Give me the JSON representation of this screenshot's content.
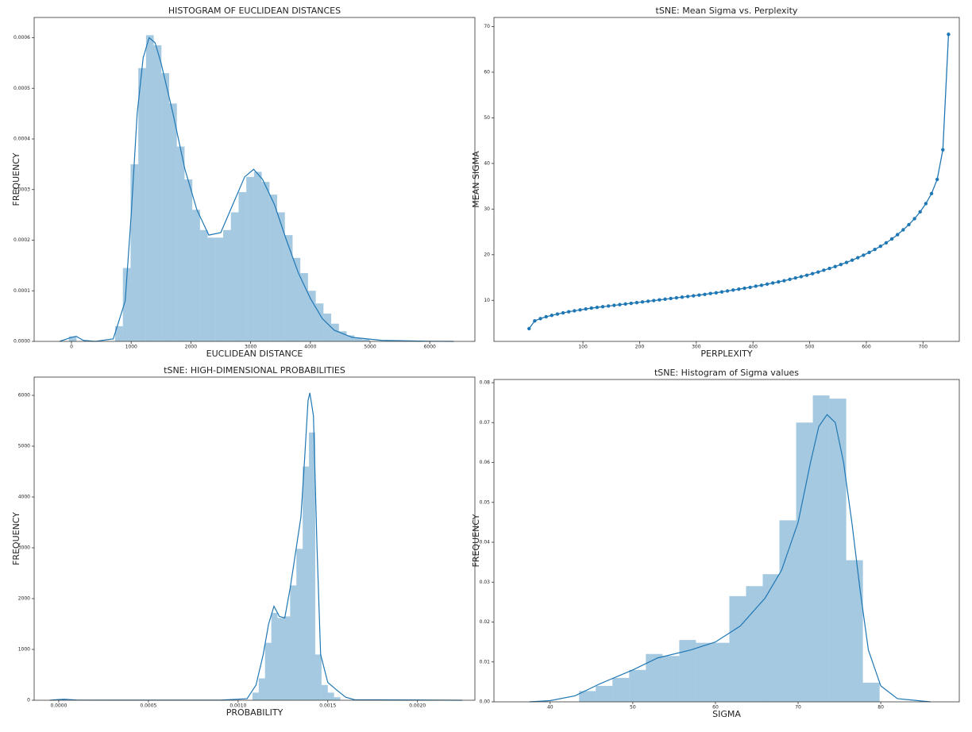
{
  "chart_data": [
    {
      "type": "histogram",
      "title": "HISTOGRAM OF EUCLIDEAN DISTANCES",
      "xlabel": "EUCLIDEAN DISTANCE",
      "ylabel": "FREQUENCY",
      "color": "#1f77b4",
      "bins": [
        -44,
        85.2,
        214.4,
        343.6,
        472.8,
        602,
        731.2,
        860.4,
        989.6,
        1118.8,
        1248,
        1377.2,
        1506.4,
        1635.6,
        1764.8,
        1894,
        2023.2,
        2152.4,
        2281.6,
        2410.8,
        2540,
        2669.2,
        2798.4,
        2927.6,
        3056.8,
        3186,
        3315.2,
        3444.4,
        3573.6,
        3702.8,
        3832,
        3961.2,
        4090.4,
        4219.6,
        4348.8,
        4478,
        4607.2,
        4736.4,
        4865.6,
        4994.8
      ],
      "values": [
        1e-05,
        0,
        0,
        0,
        0,
        0,
        3e-05,
        0.000145,
        0.00035,
        0.00054,
        0.000605,
        0.000585,
        0.00053,
        0.00047,
        0.000385,
        0.00032,
        0.00026,
        0.00022,
        0.000205,
        0.000205,
        0.00022,
        0.000255,
        0.000295,
        0.000325,
        0.000335,
        0.000315,
        0.00029,
        0.000255,
        0.00021,
        0.000165,
        0.000135,
        0.0001,
        7.5e-05,
        5.5e-05,
        3.5e-05,
        2e-05,
        1.2e-05,
        7e-06,
        4e-06
      ],
      "kde_x": [
        -200,
        0,
        80,
        200,
        400,
        700,
        900,
        1000,
        1100,
        1200,
        1300,
        1400,
        1500,
        1700,
        1900,
        2100,
        2300,
        2500,
        2700,
        2900,
        3050,
        3200,
        3400,
        3600,
        3800,
        4000,
        4200,
        4400,
        4700,
        5200,
        6000,
        6400
      ],
      "kde_y": [
        0,
        8e-06,
        1e-05,
        2e-06,
        0,
        5e-06,
        8e-05,
        0.00025,
        0.00045,
        0.00056,
        0.0006,
        0.00059,
        0.00055,
        0.00045,
        0.00034,
        0.00026,
        0.00021,
        0.000215,
        0.00027,
        0.000325,
        0.00034,
        0.00032,
        0.00027,
        0.0002,
        0.000135,
        8.5e-05,
        4.5e-05,
        2.2e-05,
        8e-06,
        2e-06,
        3e-07,
        0
      ],
      "xlim": [
        -625,
        6755
      ],
      "xticks": [
        0,
        1000,
        2000,
        3000,
        4000,
        5000,
        6000
      ],
      "ylim": [
        0,
        0.00064
      ],
      "yticks": [
        {
          "value": 0,
          "label": "0.0000"
        },
        {
          "value": 0.0001,
          "label": "0.0001"
        },
        {
          "value": 0.0002,
          "label": "0.0002"
        },
        {
          "value": 0.0003,
          "label": "0.0003"
        },
        {
          "value": 0.0004,
          "label": "0.0004"
        },
        {
          "value": 0.0005,
          "label": "0.0005"
        },
        {
          "value": 0.0006,
          "label": "0.0006"
        }
      ]
    },
    {
      "type": "line",
      "title": "tSNE: Mean Sigma vs. Perplexity",
      "xlabel": "PERPLEXITY",
      "ylabel": "MEAN SIGMA",
      "color": "#1f77b4",
      "x": [
        5,
        15,
        25,
        35,
        45,
        55,
        65,
        75,
        85,
        95,
        105,
        115,
        125,
        135,
        145,
        155,
        165,
        175,
        185,
        195,
        205,
        215,
        225,
        235,
        245,
        255,
        265,
        275,
        285,
        295,
        305,
        315,
        325,
        335,
        345,
        355,
        365,
        375,
        385,
        395,
        405,
        415,
        425,
        435,
        445,
        455,
        465,
        475,
        485,
        495,
        505,
        515,
        525,
        535,
        545,
        555,
        565,
        575,
        585,
        595,
        605,
        615,
        625,
        635,
        645,
        655,
        665,
        675,
        685,
        695,
        705,
        715,
        725,
        735,
        745
      ],
      "values": [
        3.8,
        5.5,
        6.0,
        6.4,
        6.7,
        7.0,
        7.25,
        7.5,
        7.7,
        7.9,
        8.1,
        8.3,
        8.45,
        8.6,
        8.75,
        8.9,
        9.05,
        9.2,
        9.35,
        9.5,
        9.65,
        9.8,
        9.95,
        10.1,
        10.25,
        10.4,
        10.55,
        10.7,
        10.85,
        11.0,
        11.15,
        11.3,
        11.5,
        11.65,
        11.85,
        12.05,
        12.25,
        12.45,
        12.65,
        12.85,
        13.1,
        13.3,
        13.55,
        13.8,
        14.05,
        14.3,
        14.6,
        14.9,
        15.2,
        15.5,
        15.85,
        16.2,
        16.6,
        17.0,
        17.4,
        17.85,
        18.3,
        18.8,
        19.35,
        19.9,
        20.5,
        21.15,
        21.85,
        22.6,
        23.45,
        24.4,
        25.45,
        26.6,
        27.9,
        29.4,
        31.2,
        33.4,
        36.5,
        43.0,
        68.3
      ],
      "xlim": [
        -57,
        764
      ],
      "xticks": [
        100,
        200,
        300,
        400,
        500,
        600,
        700
      ],
      "ylim": [
        1,
        72
      ],
      "yticks": [
        10,
        20,
        30,
        40,
        50,
        60,
        70
      ]
    },
    {
      "type": "histogram",
      "title": "tSNE: HIGH-DIMENSIONAL PROBABILITIES",
      "xlabel": "PROBABILITY",
      "ylabel": "FREQUENCY",
      "color": "#1f77b4",
      "bins": [
        -5e-06,
        3e-05,
        6.5e-05,
        0.0001,
        0.000135,
        0.00017,
        0.000205,
        0.00024,
        0.000275,
        0.00031,
        0.000345,
        0.00038,
        0.000415,
        0.00045,
        0.000485,
        0.00052,
        0.000555,
        0.00059,
        0.000625,
        0.00066,
        0.000695,
        0.00073,
        0.000765,
        0.0008,
        0.000835,
        0.00087,
        0.000905,
        0.00094,
        0.000975,
        0.00101,
        0.001045,
        0.00108,
        0.001115,
        0.00115,
        0.001185,
        0.00122,
        0.001255,
        0.00129,
        0.001325,
        0.00136,
        0.001395,
        0.00143,
        0.001465,
        0.0015,
        0.001535,
        0.00157
      ],
      "values": [
        20,
        0,
        0,
        0,
        0,
        0,
        0,
        0,
        0,
        0,
        0,
        0,
        0,
        0,
        0,
        0,
        0,
        0,
        0,
        0,
        0,
        0,
        0,
        0,
        0,
        0,
        0,
        0,
        0,
        0,
        0,
        150,
        430,
        1130,
        1720,
        1620,
        1650,
        2260,
        2980,
        4600,
        5270,
        900,
        300,
        150,
        60
      ],
      "kde_x": [
        -5e-05,
        0,
        3e-05,
        0.0001,
        0.0003,
        0.0009,
        0.00105,
        0.0011,
        0.00114,
        0.00117,
        0.0012,
        0.00123,
        0.00126,
        0.00129,
        0.00132,
        0.00135,
        0.00137,
        0.00139,
        0.0014,
        0.00142,
        0.00144,
        0.00146,
        0.0015,
        0.00155,
        0.0016,
        0.00165,
        0.00225
      ],
      "kde_y": [
        0,
        15,
        20,
        5,
        2,
        2,
        30,
        300,
        900,
        1500,
        1850,
        1650,
        1620,
        2200,
        2900,
        3600,
        4700,
        5900,
        6050,
        5600,
        3000,
        900,
        350,
        200,
        60,
        10,
        0
      ],
      "xlim": [
        -0.000137,
        0.00232
      ],
      "xticks": [
        {
          "value": 0,
          "label": "0.0000"
        },
        {
          "value": 0.0005,
          "label": "0.0005"
        },
        {
          "value": 0.001,
          "label": "0.0010"
        },
        {
          "value": 0.0015,
          "label": "0.0015"
        },
        {
          "value": 0.002,
          "label": "0.0020"
        }
      ],
      "ylim": [
        0,
        6360
      ],
      "yticks": [
        0,
        1000,
        2000,
        3000,
        4000,
        5000,
        6000
      ]
    },
    {
      "type": "histogram",
      "title": "tSNE: Histogram of Sigma values",
      "xlabel": "SIGMA",
      "ylabel": "FREQUENCY",
      "color": "#1f77b4",
      "bins": [
        43.5,
        45.52,
        47.54,
        49.56,
        51.58,
        53.6,
        55.62,
        57.64,
        59.66,
        61.68,
        63.7,
        65.72,
        67.74,
        69.76,
        71.78,
        73.8,
        75.82,
        77.84,
        79.86
      ],
      "values": [
        0.0027,
        0.004,
        0.006,
        0.008,
        0.012,
        0.0115,
        0.0155,
        0.0148,
        0.0148,
        0.0265,
        0.029,
        0.032,
        0.0455,
        0.07,
        0.0768,
        0.076,
        0.0355,
        0.0048
      ],
      "kde_x": [
        37.5,
        40,
        43,
        46,
        50,
        53,
        57,
        60,
        63,
        66,
        68,
        70,
        71.5,
        72.5,
        73.5,
        74.5,
        75.5,
        76.5,
        77.5,
        78.5,
        80,
        82,
        86
      ],
      "kde_y": [
        0,
        0.0003,
        0.0015,
        0.0045,
        0.008,
        0.011,
        0.013,
        0.015,
        0.019,
        0.026,
        0.033,
        0.045,
        0.06,
        0.069,
        0.072,
        0.07,
        0.06,
        0.045,
        0.028,
        0.013,
        0.004,
        0.0008,
        0
      ],
      "xlim": [
        33.2,
        89.5
      ],
      "xticks": [
        40,
        50,
        60,
        70,
        80
      ],
      "ylim": [
        0,
        0.0808
      ],
      "yticks": [
        {
          "value": 0,
          "label": "0.00"
        },
        {
          "value": 0.01,
          "label": "0.01"
        },
        {
          "value": 0.02,
          "label": "0.02"
        },
        {
          "value": 0.03,
          "label": "0.03"
        },
        {
          "value": 0.04,
          "label": "0.04"
        },
        {
          "value": 0.05,
          "label": "0.05"
        },
        {
          "value": 0.06,
          "label": "0.06"
        },
        {
          "value": 0.07,
          "label": "0.07"
        },
        {
          "value": 0.08,
          "label": "0.08"
        }
      ]
    }
  ]
}
